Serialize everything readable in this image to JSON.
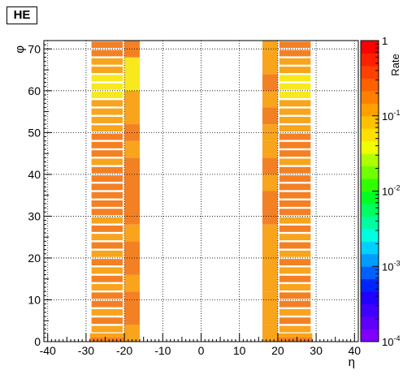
{
  "title": "HE",
  "chart_data": {
    "type": "heatmap",
    "title": "HE",
    "xlabel": "η",
    "ylabel": "φ",
    "zlabel": "Rate",
    "xlim": [
      -41,
      41
    ],
    "ylim": [
      0,
      72
    ],
    "zscale": "log",
    "zlim": [
      0.0001,
      1
    ],
    "grid": true,
    "x_ticks": [
      -40,
      -30,
      -20,
      -10,
      0,
      10,
      20,
      30,
      40
    ],
    "y_ticks": [
      0,
      10,
      20,
      30,
      40,
      50,
      60,
      70
    ],
    "z_ticks": [
      {
        "base": "10",
        "exp": "-4",
        "value": 0.0001
      },
      {
        "base": "10",
        "exp": "-3",
        "value": 0.001
      },
      {
        "base": "10",
        "exp": "-2",
        "value": 0.01
      },
      {
        "base": "10",
        "exp": "-1",
        "value": 0.1
      },
      {
        "base": "1",
        "exp": "",
        "value": 1
      }
    ],
    "colorbar_colors": [
      "#7f00ff",
      "#5f00ff",
      "#3f00ff",
      "#2000ff",
      "#0024ff",
      "#0060ff",
      "#009cff",
      "#00d0ff",
      "#00ffe0",
      "#00ffa0",
      "#00ff60",
      "#00ff20",
      "#30ff00",
      "#70ff00",
      "#b0ff00",
      "#f0ff00",
      "#ffe000",
      "#ffc000",
      "#ffa000",
      "#ff8000",
      "#ff6000",
      "#ff4000",
      "#ff2000",
      "#ff0000"
    ],
    "rate_colors": {
      "L": "#f8a41c",
      "M": "#f48024",
      "H": "#f27024",
      "Y": "#f8e81c",
      "YO": "#f8c81c"
    },
    "ring_segments": [
      {
        "phi": [
          0,
          2
        ],
        "rate": "M"
      },
      {
        "phi": [
          2,
          4
        ],
        "rate": "L"
      },
      {
        "phi": [
          4,
          6
        ],
        "rate": "M"
      },
      {
        "phi": [
          6,
          8
        ],
        "rate": "L"
      },
      {
        "phi": [
          8,
          10
        ],
        "rate": "M"
      },
      {
        "phi": [
          10,
          12
        ],
        "rate": "M"
      },
      {
        "phi": [
          12,
          14
        ],
        "rate": "L"
      },
      {
        "phi": [
          14,
          16
        ],
        "rate": "M"
      },
      {
        "phi": [
          16,
          18
        ],
        "rate": "L"
      },
      {
        "phi": [
          18,
          20
        ],
        "rate": "M"
      },
      {
        "phi": [
          20,
          22
        ],
        "rate": "L"
      },
      {
        "phi": [
          22,
          24
        ],
        "rate": "M"
      },
      {
        "phi": [
          24,
          26
        ],
        "rate": "L"
      },
      {
        "phi": [
          26,
          28
        ],
        "rate": "M"
      },
      {
        "phi": [
          28,
          30
        ],
        "rate": "L"
      },
      {
        "phi": [
          30,
          32
        ],
        "rate": "M"
      },
      {
        "phi": [
          32,
          34
        ],
        "rate": "M"
      },
      {
        "phi": [
          34,
          36
        ],
        "rate": "M"
      },
      {
        "phi": [
          36,
          38
        ],
        "rate": "M"
      },
      {
        "phi": [
          38,
          40
        ],
        "rate": "M"
      },
      {
        "phi": [
          40,
          42
        ],
        "rate": "M"
      },
      {
        "phi": [
          42,
          44
        ],
        "rate": "L"
      },
      {
        "phi": [
          44,
          46
        ],
        "rate": "M"
      },
      {
        "phi": [
          46,
          48
        ],
        "rate": "M"
      },
      {
        "phi": [
          48,
          50
        ],
        "rate": "M"
      },
      {
        "phi": [
          50,
          52
        ],
        "rate": "L"
      },
      {
        "phi": [
          52,
          54
        ],
        "rate": "L"
      },
      {
        "phi": [
          54,
          56
        ],
        "rate": "L"
      },
      {
        "phi": [
          56,
          58
        ],
        "rate": "L"
      },
      {
        "phi": [
          58,
          60
        ],
        "rate": "Y"
      },
      {
        "phi": [
          60,
          62
        ],
        "rate": "Y"
      },
      {
        "phi": [
          62,
          64
        ],
        "rate": "Y"
      },
      {
        "phi": [
          64,
          66
        ],
        "rate": "L"
      },
      {
        "phi": [
          66,
          68
        ],
        "rate": "L"
      },
      {
        "phi": [
          68,
          70
        ],
        "rate": "M"
      },
      {
        "phi": [
          70,
          72
        ],
        "rate": "M"
      }
    ],
    "cells": [
      {
        "eta": [
          -29,
          -20
        ],
        "phi": [
          0,
          1
        ],
        "rate": "M"
      },
      {
        "eta": [
          -29,
          -20
        ],
        "phi": [
          1,
          2
        ],
        "rate": "L"
      },
      {
        "eta": [
          20,
          29
        ],
        "phi": [
          0,
          1
        ],
        "rate": "M"
      },
      {
        "eta": [
          20,
          29
        ],
        "phi": [
          1,
          2
        ],
        "rate": "L"
      },
      {
        "eta": [
          -20,
          -16
        ],
        "phi": [
          0,
          4
        ],
        "rate": "L"
      },
      {
        "eta": [
          -20,
          -16
        ],
        "phi": [
          4,
          12
        ],
        "rate": "M"
      },
      {
        "eta": [
          -20,
          -16
        ],
        "phi": [
          12,
          16
        ],
        "rate": "L"
      },
      {
        "eta": [
          -20,
          -16
        ],
        "phi": [
          16,
          24
        ],
        "rate": "M"
      },
      {
        "eta": [
          -20,
          -16
        ],
        "phi": [
          24,
          28
        ],
        "rate": "L"
      },
      {
        "eta": [
          -20,
          -16
        ],
        "phi": [
          28,
          44
        ],
        "rate": "M"
      },
      {
        "eta": [
          -20,
          -16
        ],
        "phi": [
          44,
          48
        ],
        "rate": "L"
      },
      {
        "eta": [
          -20,
          -16
        ],
        "phi": [
          48,
          52
        ],
        "rate": "M"
      },
      {
        "eta": [
          -20,
          -16
        ],
        "phi": [
          52,
          56
        ],
        "rate": "L"
      },
      {
        "eta": [
          -20,
          -16
        ],
        "phi": [
          56,
          60
        ],
        "rate": "L"
      },
      {
        "eta": [
          -20,
          -16
        ],
        "phi": [
          60,
          68
        ],
        "rate": "Y"
      },
      {
        "eta": [
          -20,
          -16
        ],
        "phi": [
          68,
          72
        ],
        "rate": "M"
      },
      {
        "eta": [
          16,
          20
        ],
        "phi": [
          0,
          4
        ],
        "rate": "L"
      },
      {
        "eta": [
          16,
          20
        ],
        "phi": [
          4,
          12
        ],
        "rate": "L"
      },
      {
        "eta": [
          16,
          20
        ],
        "phi": [
          12,
          28
        ],
        "rate": "L"
      },
      {
        "eta": [
          16,
          20
        ],
        "phi": [
          28,
          36
        ],
        "rate": "M"
      },
      {
        "eta": [
          16,
          20
        ],
        "phi": [
          36,
          40
        ],
        "rate": "L"
      },
      {
        "eta": [
          16,
          20
        ],
        "phi": [
          40,
          44
        ],
        "rate": "M"
      },
      {
        "eta": [
          16,
          20
        ],
        "phi": [
          44,
          48
        ],
        "rate": "L"
      },
      {
        "eta": [
          16,
          20
        ],
        "phi": [
          48,
          52
        ],
        "rate": "L"
      },
      {
        "eta": [
          16,
          20
        ],
        "phi": [
          52,
          56
        ],
        "rate": "M"
      },
      {
        "eta": [
          16,
          20
        ],
        "phi": [
          56,
          60
        ],
        "rate": "L"
      },
      {
        "eta": [
          16,
          20
        ],
        "phi": [
          60,
          64
        ],
        "rate": "M"
      },
      {
        "eta": [
          16,
          20
        ],
        "phi": [
          64,
          72
        ],
        "rate": "L"
      }
    ]
  }
}
